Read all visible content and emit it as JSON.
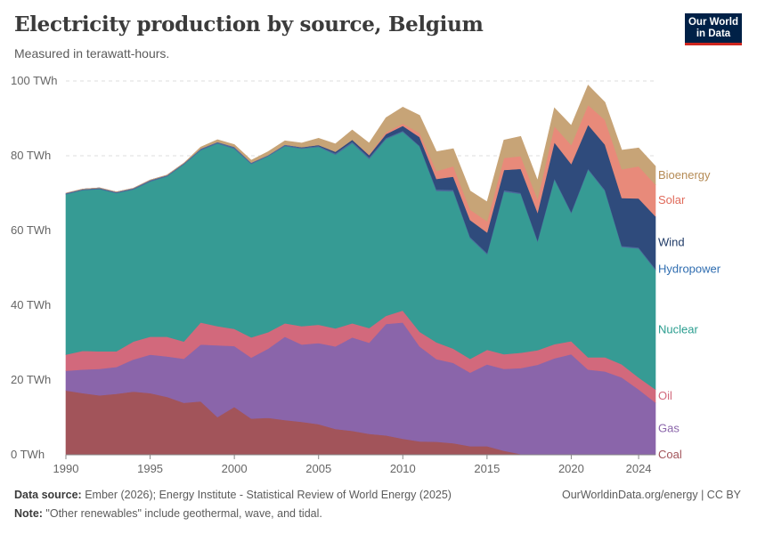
{
  "header": {
    "title": "Electricity production by source, Belgium",
    "subtitle": "Measured in terawatt-hours.",
    "logo_line1": "Our World",
    "logo_line2": "in Data"
  },
  "footer": {
    "source_label": "Data source:",
    "source_text": " Ember (2026); Energy Institute - Statistical Review of World Energy (2025)",
    "note_label": "Note:",
    "note_text": " \"Other renewables\" include geothermal, wave, and tidal.",
    "right_text": "OurWorldinData.org/energy | CC BY"
  },
  "chart_data": {
    "type": "area",
    "stacked": true,
    "ylim": [
      0,
      100
    ],
    "y_ticks": [
      0,
      20,
      40,
      60,
      80,
      100
    ],
    "y_tick_labels": [
      "0 TWh",
      "20 TWh",
      "40 TWh",
      "60 TWh",
      "80 TWh",
      "100 TWh"
    ],
    "x_ticks": [
      1990,
      1995,
      2000,
      2005,
      2010,
      2015,
      2020,
      2024
    ],
    "grid": "horizontal dashed",
    "legend": "right, inline labels",
    "x": [
      1990,
      1991,
      1992,
      1993,
      1994,
      1995,
      1996,
      1997,
      1998,
      1999,
      2000,
      2001,
      2002,
      2003,
      2004,
      2005,
      2006,
      2007,
      2008,
      2009,
      2010,
      2011,
      2012,
      2013,
      2014,
      2015,
      2016,
      2017,
      2018,
      2019,
      2020,
      2021,
      2022,
      2023,
      2024,
      2025
    ],
    "series": [
      {
        "name": "Coal",
        "color": "#a2545a",
        "values": [
          17.2,
          16.5,
          15.9,
          16.3,
          16.9,
          16.5,
          15.5,
          13.9,
          14.3,
          10.1,
          12.8,
          9.7,
          9.9,
          9.3,
          8.8,
          8.2,
          6.9,
          6.4,
          5.6,
          5.2,
          4.3,
          3.6,
          3.5,
          3.1,
          2.3,
          2.3,
          1.1,
          0.2,
          0,
          0,
          0,
          0,
          0,
          0,
          0,
          0
        ]
      },
      {
        "name": "Gas",
        "color": "#8a65aa",
        "values": [
          5.3,
          6.3,
          7.1,
          7.2,
          8.6,
          10.3,
          10.8,
          11.8,
          15.2,
          19.2,
          16.3,
          16.3,
          18.5,
          22.3,
          20.7,
          21.7,
          22.1,
          25.0,
          24.4,
          29.8,
          31.1,
          25.4,
          22.1,
          21.5,
          19.7,
          21.9,
          21.9,
          23.0,
          24.1,
          25.8,
          26.9,
          22.8,
          22.3,
          20.7,
          17.5,
          14.0
        ]
      },
      {
        "name": "Oil",
        "color": "#d2697c",
        "values": [
          4.3,
          5.0,
          4.7,
          4.2,
          4.8,
          4.8,
          5.3,
          4.6,
          5.9,
          5.1,
          4.6,
          5.4,
          4.4,
          3.6,
          4.9,
          4.9,
          4.8,
          3.8,
          3.9,
          2.2,
          3.2,
          3.9,
          4.5,
          3.8,
          3.7,
          3.9,
          3.9,
          4.1,
          3.9,
          3.8,
          3.5,
          3.3,
          3.8,
          3.5,
          3.2,
          3.5
        ]
      },
      {
        "name": "Nuclear",
        "color": "#369b94",
        "values": [
          42.9,
          43.0,
          43.4,
          42.3,
          40.7,
          41.5,
          42.9,
          47.4,
          46.1,
          48.9,
          48.2,
          46.4,
          47.1,
          47.4,
          47.5,
          47.6,
          46.5,
          48.2,
          45.3,
          47.3,
          47.8,
          49.6,
          40.5,
          42.1,
          32.3,
          25.6,
          43.5,
          42.5,
          29.1,
          44.1,
          34.3,
          50.2,
          44.5,
          31.4,
          34.5,
          32.0
        ]
      },
      {
        "name": "Hydropower",
        "color": "#4c6a9c",
        "values": [
          0.3,
          0.3,
          0.3,
          0.3,
          0.3,
          0.4,
          0.3,
          0.3,
          0.4,
          0.4,
          0.5,
          0.4,
          0.3,
          0.4,
          0.3,
          0.3,
          0.4,
          0.4,
          0.4,
          0.3,
          0.3,
          0.2,
          0.4,
          0.4,
          0.3,
          0.3,
          0.4,
          0.3,
          0.3,
          0.3,
          0.3,
          0.3,
          0.3,
          0.3,
          0.3,
          0.3
        ]
      },
      {
        "name": "Wind",
        "color": "#2f4b7c",
        "values": [
          0,
          0,
          0,
          0,
          0,
          0,
          0,
          0,
          0,
          0,
          0,
          0,
          0,
          0,
          0.1,
          0.2,
          0.4,
          0.5,
          0.6,
          1.0,
          1.3,
          2.3,
          2.8,
          3.5,
          4.5,
          5.5,
          5.4,
          6.4,
          7.4,
          9.6,
          12.8,
          11.7,
          12.1,
          12.8,
          13.1,
          14.0
        ]
      },
      {
        "name": "Solar",
        "color": "#e88a7a",
        "values": [
          0,
          0,
          0,
          0,
          0,
          0,
          0,
          0,
          0,
          0,
          0,
          0,
          0,
          0,
          0,
          0,
          0,
          0,
          0.2,
          0.5,
          0.6,
          1.1,
          2.1,
          2.8,
          2.8,
          3.0,
          3.2,
          3.4,
          3.6,
          4.3,
          5.1,
          5.3,
          6.6,
          7.7,
          8.6,
          8.5
        ]
      },
      {
        "name": "Bioenergy",
        "color": "#c7a477",
        "values": [
          0,
          0,
          0,
          0,
          0,
          0,
          0,
          0,
          0.4,
          0.6,
          0.6,
          0.6,
          0.9,
          1.0,
          1.1,
          1.8,
          2.1,
          2.6,
          3.0,
          3.9,
          4.4,
          4.7,
          5.2,
          4.7,
          5.0,
          5.2,
          4.8,
          5.3,
          5.0,
          4.9,
          5.2,
          5.3,
          4.7,
          5.1,
          4.9,
          4.9
        ]
      }
    ]
  }
}
